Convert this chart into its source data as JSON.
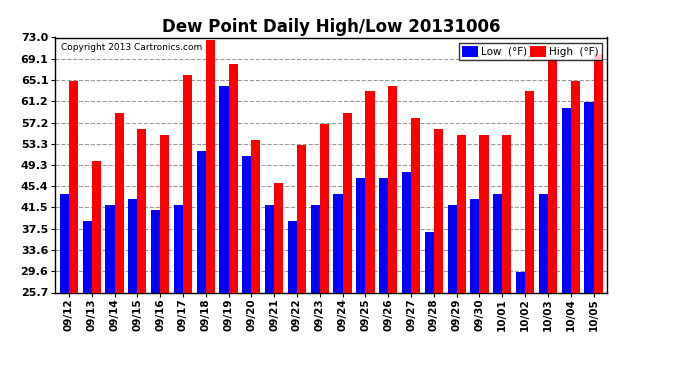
{
  "title": "Dew Point Daily High/Low 20131006",
  "copyright": "Copyright 2013 Cartronics.com",
  "categories": [
    "09/12",
    "09/13",
    "09/14",
    "09/15",
    "09/16",
    "09/17",
    "09/18",
    "09/19",
    "09/20",
    "09/21",
    "09/22",
    "09/23",
    "09/24",
    "09/25",
    "09/26",
    "09/27",
    "09/28",
    "09/29",
    "09/30",
    "10/01",
    "10/02",
    "10/03",
    "10/04",
    "10/05"
  ],
  "low_values": [
    44.0,
    39.0,
    42.0,
    43.0,
    41.0,
    42.0,
    52.0,
    64.0,
    51.0,
    42.0,
    39.0,
    42.0,
    44.0,
    47.0,
    47.0,
    48.0,
    37.0,
    42.0,
    43.0,
    44.0,
    29.5,
    44.0,
    60.0,
    61.0
  ],
  "high_values": [
    65.0,
    50.0,
    59.0,
    56.0,
    55.0,
    66.0,
    72.5,
    68.0,
    54.0,
    46.0,
    53.0,
    57.0,
    59.0,
    63.0,
    64.0,
    58.0,
    56.0,
    55.0,
    55.0,
    55.0,
    63.0,
    69.0,
    65.0,
    70.0
  ],
  "ylim": [
    25.7,
    73.0
  ],
  "yticks": [
    25.7,
    29.6,
    33.6,
    37.5,
    41.5,
    45.4,
    49.3,
    53.3,
    57.2,
    61.2,
    65.1,
    69.1,
    73.0
  ],
  "low_color": "#0000ff",
  "high_color": "#ff0000",
  "bg_color": "#ffffff",
  "grid_color": "#999999",
  "bar_width": 0.4,
  "title_fontsize": 12,
  "legend_low_label": "Low  (°F)",
  "legend_high_label": "High  (°F)"
}
